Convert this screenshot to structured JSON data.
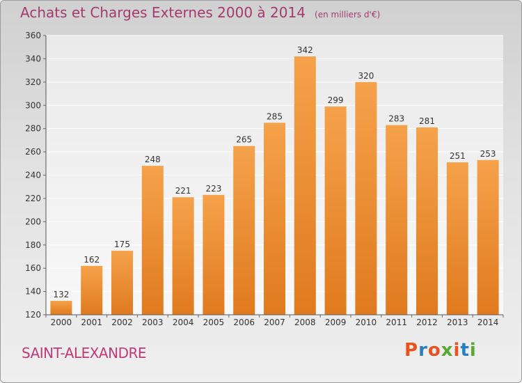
{
  "header": {
    "title": "Achats et Charges Externes 2000 à 2014",
    "subtitle": "(en milliers d'€)"
  },
  "footer": {
    "location": "SAINT-ALEXANDRE",
    "logo_text": "Proxiti",
    "logo_colors": [
      "#e8531f",
      "#2a7fc1",
      "#e8531f",
      "#5aa830",
      "#e8531f",
      "#2a7fc1",
      "#5aa830"
    ]
  },
  "chart_data": {
    "type": "bar",
    "categories": [
      "2000",
      "2001",
      "2002",
      "2003",
      "2004",
      "2005",
      "2006",
      "2007",
      "2008",
      "2009",
      "2010",
      "2011",
      "2012",
      "2013",
      "2014"
    ],
    "values": [
      132,
      162,
      175,
      248,
      221,
      223,
      265,
      285,
      342,
      299,
      320,
      283,
      281,
      251,
      253
    ],
    "ylim": [
      120,
      360
    ],
    "yticks": [
      120,
      140,
      160,
      180,
      200,
      220,
      240,
      260,
      280,
      300,
      320,
      340,
      360
    ],
    "grid": true,
    "bar_color_top": "#f5a24b",
    "bar_color_bottom": "#e07a1e"
  }
}
